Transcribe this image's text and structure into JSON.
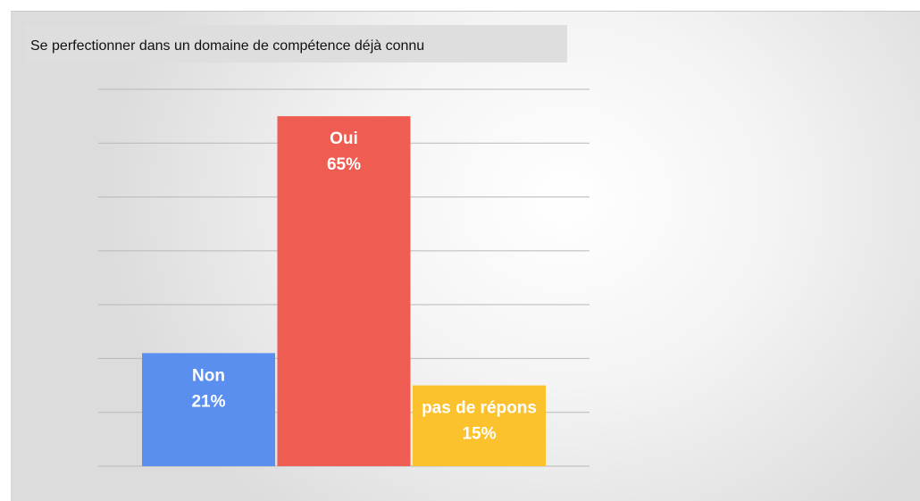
{
  "chart_data": {
    "type": "bar",
    "title": "Se perfectionner dans un domaine de compétence déjà connu",
    "categories": [
      "Non",
      "Oui",
      "pas de répons"
    ],
    "values": [
      21,
      65,
      15
    ],
    "value_labels": [
      "21%",
      "65%",
      "15%"
    ],
    "colors": [
      "#5a8ff0",
      "#ee5c52",
      "#fbc22e"
    ],
    "ylim": [
      0,
      70
    ],
    "yticks": [
      0,
      10,
      20,
      30,
      40,
      50,
      60,
      70
    ],
    "grid": true
  }
}
